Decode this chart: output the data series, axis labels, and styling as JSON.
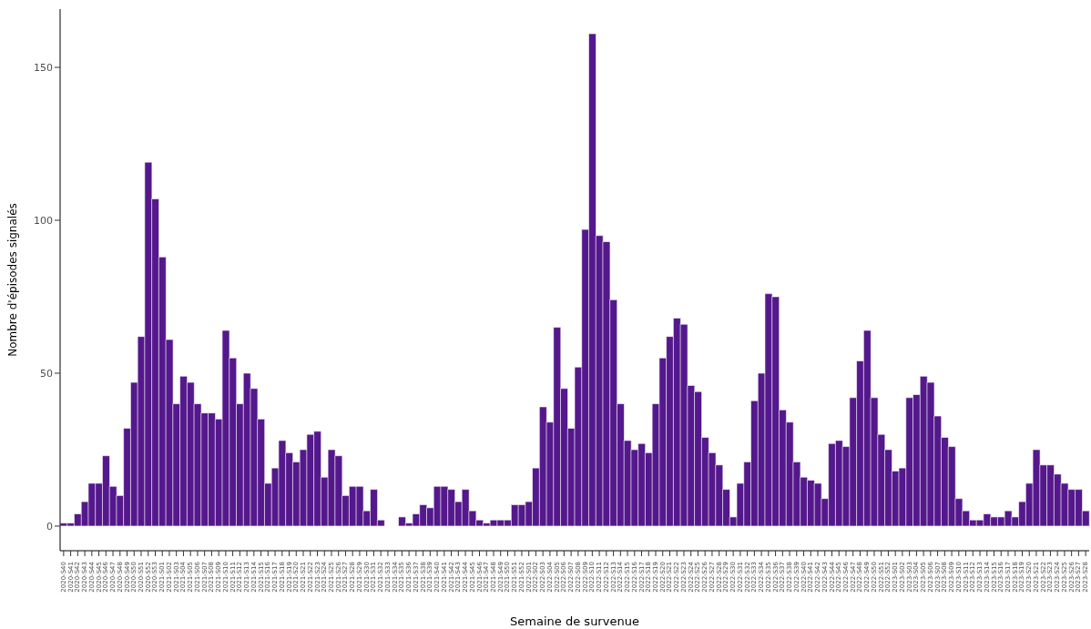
{
  "chart_data": {
    "type": "bar",
    "xlabel": "Semaine de survenue",
    "ylabel": "Nombre d'épisodes signalés",
    "categories": [
      "2020-S40",
      "2020-S41",
      "2020-S42",
      "2020-S43",
      "2020-S44",
      "2020-S45",
      "2020-S46",
      "2020-S47",
      "2020-S48",
      "2020-S49",
      "2020-S50",
      "2020-S51",
      "2020-S52",
      "2020-S53",
      "2021-S01",
      "2021-S02",
      "2021-S03",
      "2021-S04",
      "2021-S05",
      "2021-S06",
      "2021-S07",
      "2021-S08",
      "2021-S09",
      "2021-S10",
      "2021-S11",
      "2021-S12",
      "2021-S13",
      "2021-S14",
      "2021-S15",
      "2021-S16",
      "2021-S17",
      "2021-S18",
      "2021-S19",
      "2021-S20",
      "2021-S21",
      "2021-S22",
      "2021-S23",
      "2021-S24",
      "2021-S25",
      "2021-S26",
      "2021-S27",
      "2021-S28",
      "2021-S29",
      "2021-S30",
      "2021-S31",
      "2021-S32",
      "2021-S33",
      "2021-S34",
      "2021-S35",
      "2021-S36",
      "2021-S37",
      "2021-S38",
      "2021-S39",
      "2021-S40",
      "2021-S41",
      "2021-S42",
      "2021-S43",
      "2021-S44",
      "2021-S45",
      "2021-S46",
      "2021-S47",
      "2021-S48",
      "2021-S49",
      "2021-S50",
      "2021-S51",
      "2021-S52",
      "2022-S01",
      "2022-S02",
      "2022-S03",
      "2022-S04",
      "2022-S05",
      "2022-S06",
      "2022-S07",
      "2022-S08",
      "2022-S09",
      "2022-S10",
      "2022-S11",
      "2022-S12",
      "2022-S13",
      "2022-S14",
      "2022-S15",
      "2022-S16",
      "2022-S17",
      "2022-S18",
      "2022-S19",
      "2022-S20",
      "2022-S21",
      "2022-S22",
      "2022-S23",
      "2022-S24",
      "2022-S25",
      "2022-S26",
      "2022-S27",
      "2022-S28",
      "2022-S29",
      "2022-S30",
      "2022-S31",
      "2022-S32",
      "2022-S33",
      "2022-S34",
      "2022-S35",
      "2022-S36",
      "2022-S37",
      "2022-S38",
      "2022-S39",
      "2022-S40",
      "2022-S41",
      "2022-S42",
      "2022-S43",
      "2022-S44",
      "2022-S45",
      "2022-S46",
      "2022-S47",
      "2022-S48",
      "2022-S49",
      "2022-S50",
      "2022-S51",
      "2022-S52",
      "2023-S01",
      "2023-S02",
      "2023-S03",
      "2023-S04",
      "2023-S05",
      "2023-S06",
      "2023-S07",
      "2023-S08",
      "2023-S09",
      "2023-S10",
      "2023-S11",
      "2023-S12",
      "2023-S13",
      "2023-S14",
      "2023-S15",
      "2023-S16",
      "2023-S17",
      "2023-S18",
      "2023-S19",
      "2023-S20",
      "2023-S21",
      "2023-S22",
      "2023-S23",
      "2023-S24",
      "2023-S25",
      "2023-S26",
      "2023-S27",
      "2023-S28"
    ],
    "values": [
      1,
      1,
      4,
      8,
      14,
      14,
      23,
      13,
      10,
      32,
      47,
      62,
      119,
      107,
      88,
      61,
      40,
      49,
      47,
      40,
      37,
      37,
      35,
      64,
      55,
      40,
      50,
      45,
      35,
      14,
      19,
      28,
      24,
      21,
      25,
      30,
      31,
      16,
      25,
      23,
      10,
      13,
      13,
      5,
      12,
      2,
      null,
      null,
      3,
      1,
      4,
      7,
      6,
      13,
      13,
      12,
      8,
      12,
      5,
      2,
      1,
      2,
      2,
      2,
      7,
      7,
      8,
      19,
      39,
      34,
      65,
      45,
      32,
      52,
      97,
      161,
      95,
      93,
      74,
      40,
      28,
      25,
      27,
      24,
      40,
      55,
      62,
      68,
      66,
      46,
      44,
      29,
      24,
      20,
      12,
      3,
      14,
      21,
      41,
      50,
      76,
      75,
      38,
      34,
      21,
      16,
      15,
      14,
      9,
      27,
      28,
      26,
      42,
      54,
      64,
      42,
      30,
      25,
      18,
      19,
      42,
      43,
      49,
      47,
      36,
      29,
      26,
      9,
      5,
      2,
      2,
      4,
      3,
      3,
      5,
      3,
      8,
      14,
      25,
      20,
      20,
      17,
      14,
      12,
      12,
      5
    ],
    "color": "#54188c",
    "ylim": [
      -8.05,
      169.05
    ],
    "yticks": [
      0,
      50,
      100,
      150
    ],
    "grid": false
  }
}
